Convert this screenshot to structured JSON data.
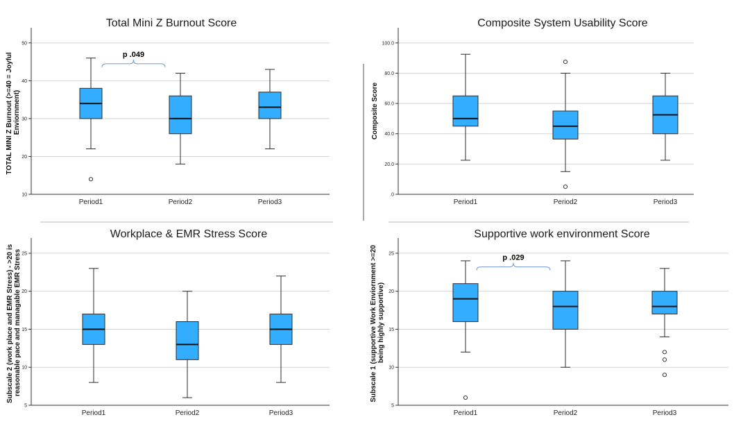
{
  "colors": {
    "box_fill": "#33adff",
    "box_stroke": "#2b2b2b",
    "grid": "#d4d4d4",
    "bracket": "#6f97d6"
  },
  "chart_data": [
    {
      "type": "box",
      "title": "Total Mini Z Burnout Score",
      "ylabel": [
        "TOTAL MINI Z Burnout (>=40 = Joyful",
        "Enviornment)"
      ],
      "categories": [
        "Period1",
        "Period2",
        "Period3"
      ],
      "ylim": [
        10,
        54
      ],
      "yticks": [
        10,
        20,
        30,
        40,
        50
      ],
      "ytick_labels": [
        "10",
        "20",
        "30",
        "40",
        "50"
      ],
      "grid": true,
      "boxes": [
        {
          "min": 22,
          "q1": 30,
          "median": 34,
          "q3": 38,
          "max": 46,
          "outliers": [
            14
          ]
        },
        {
          "min": 18,
          "q1": 26,
          "median": 30,
          "q3": 36,
          "max": 42,
          "outliers": []
        },
        {
          "min": 22,
          "q1": 30,
          "median": 33,
          "q3": 37,
          "max": 43,
          "outliers": []
        }
      ],
      "annotation": {
        "text": "p .049",
        "from": 0,
        "to": 1,
        "y": 44.5
      }
    },
    {
      "type": "box",
      "title": "Composite System Usability Score",
      "ylabel": [
        "Composite Score"
      ],
      "categories": [
        "Period1",
        "Period2",
        "Period3"
      ],
      "ylim": [
        0,
        110
      ],
      "yticks": [
        0,
        20,
        40,
        60,
        80,
        100
      ],
      "ytick_labels": [
        ".0",
        "20.0",
        "40.0",
        "60.0",
        "80.0",
        "100.0"
      ],
      "grid": true,
      "boxes": [
        {
          "min": 22.5,
          "q1": 45,
          "median": 50,
          "q3": 65,
          "max": 92.5,
          "outliers": []
        },
        {
          "min": 15,
          "q1": 36.5,
          "median": 45,
          "q3": 55,
          "max": 80,
          "outliers": [
            5,
            87.5
          ]
        },
        {
          "min": 22.5,
          "q1": 40,
          "median": 52.5,
          "q3": 65,
          "max": 80,
          "outliers": []
        }
      ]
    },
    {
      "type": "box",
      "title": "Workplace & EMR Stress Score",
      "ylabel": [
        "Subscale 2 (work place and EMR Stress) - >20 is",
        "reasonable pace and managable EMR Stress"
      ],
      "categories": [
        "Period1",
        "Period2",
        "Period3"
      ],
      "ylim": [
        5,
        27
      ],
      "yticks": [
        5,
        10,
        15,
        20,
        25
      ],
      "ytick_labels": [
        "5",
        "10",
        "15",
        "20",
        "25"
      ],
      "grid": true,
      "boxes": [
        {
          "min": 8,
          "q1": 13,
          "median": 15,
          "q3": 17,
          "max": 23,
          "outliers": []
        },
        {
          "min": 6,
          "q1": 11,
          "median": 13,
          "q3": 16,
          "max": 20,
          "outliers": []
        },
        {
          "min": 8,
          "q1": 13,
          "median": 15,
          "q3": 17,
          "max": 22,
          "outliers": []
        }
      ]
    },
    {
      "type": "box",
      "title": "Supportive work environment Score",
      "ylabel": [
        "Subscale 1 (supportive Work Enviornment >=20",
        "being highly supportive)"
      ],
      "categories": [
        "Period1",
        "Period2",
        "Period3"
      ],
      "ylim": [
        5,
        27
      ],
      "yticks": [
        5,
        10,
        15,
        20,
        25
      ],
      "ytick_labels": [
        "5",
        "10",
        "15",
        "20",
        "25"
      ],
      "grid": true,
      "boxes": [
        {
          "min": 12,
          "q1": 16,
          "median": 19,
          "q3": 21,
          "max": 24,
          "outliers": [
            6
          ]
        },
        {
          "min": 10,
          "q1": 15,
          "median": 18,
          "q3": 20,
          "max": 24,
          "outliers": []
        },
        {
          "min": 14,
          "q1": 17,
          "median": 18,
          "q3": 20,
          "max": 23,
          "outliers": [
            9,
            11,
            12
          ]
        }
      ],
      "annotation": {
        "text": "p .029",
        "from": 0,
        "to": 1,
        "y": 23.2
      }
    }
  ]
}
